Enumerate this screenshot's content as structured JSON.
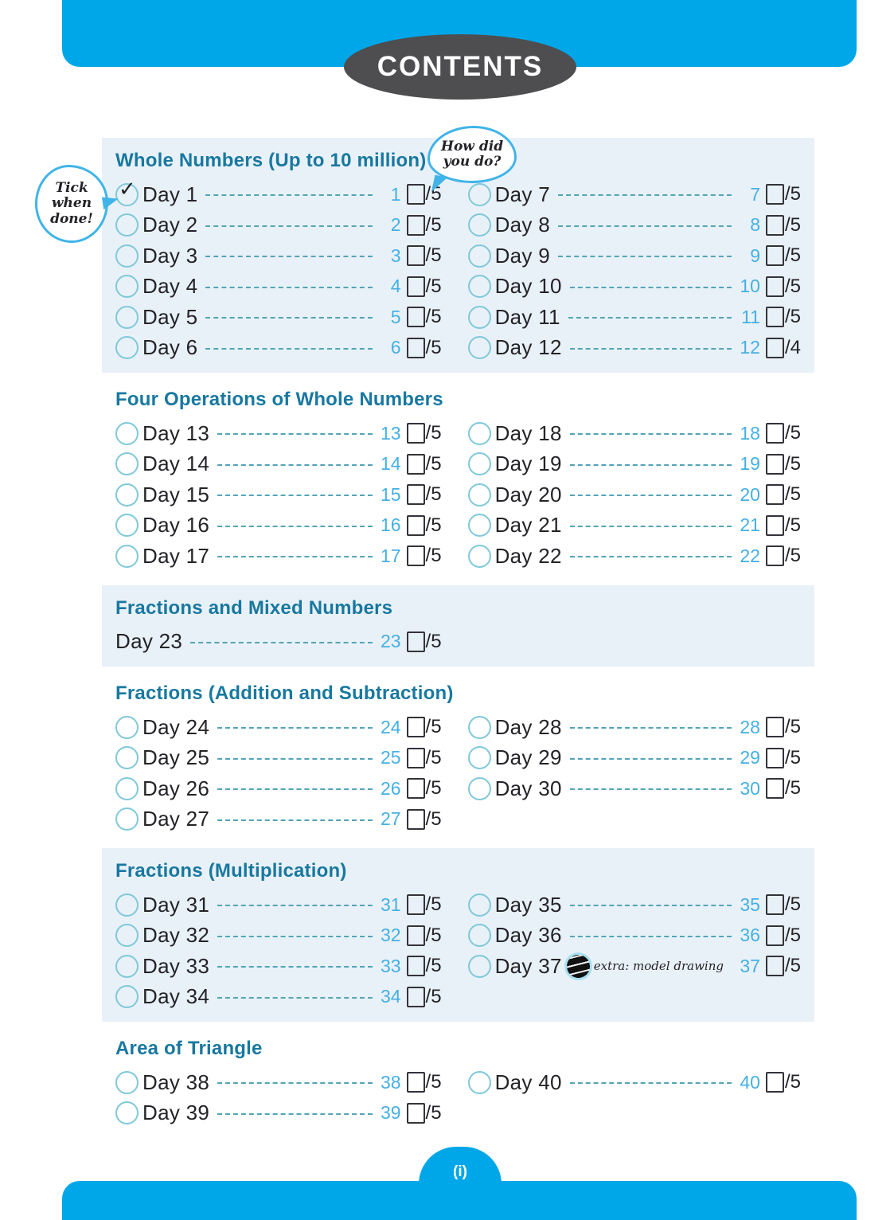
{
  "page": {
    "title": "CONTENTS",
    "footer_page_label": "(i)"
  },
  "icons": {
    "tick": "✓",
    "extra_badge": "extra-stamp-icon"
  },
  "colors": {
    "frame_blue": "#00a7e8",
    "oval_gray": "#4e4e50",
    "heading_teal": "#1878a0",
    "text_dark": "#232328",
    "page_number_blue": "#45b0e4",
    "dash_teal": "#53a4b8",
    "circle_outline": "#7fc9d9",
    "panel_background": "#e9f1f8",
    "bubble_blue": "#40b4e8"
  },
  "bubbles": {
    "tick_when_done": {
      "lines": [
        "Tick",
        "when",
        "done!"
      ]
    },
    "how_did_you_do": {
      "lines": [
        "How did",
        "you do?"
      ]
    }
  },
  "sections": [
    {
      "title": "Whole Numbers (Up to 10 million)",
      "panel": true,
      "columns": [
        [
          {
            "label": "Day 1",
            "page": "1",
            "score": "/5",
            "ticked": true
          },
          {
            "label": "Day 2",
            "page": "2",
            "score": "/5"
          },
          {
            "label": "Day 3",
            "page": "3",
            "score": "/5"
          },
          {
            "label": "Day 4",
            "page": "4",
            "score": "/5"
          },
          {
            "label": "Day 5",
            "page": "5",
            "score": "/5"
          },
          {
            "label": "Day 6",
            "page": "6",
            "score": "/5"
          }
        ],
        [
          {
            "label": "Day 7",
            "page": "7",
            "score": "/5"
          },
          {
            "label": "Day 8",
            "page": "8",
            "score": "/5"
          },
          {
            "label": "Day 9",
            "page": "9",
            "score": "/5"
          },
          {
            "label": "Day 10",
            "page": "10",
            "score": "/5"
          },
          {
            "label": "Day 11",
            "page": "11",
            "score": "/5"
          },
          {
            "label": "Day 12",
            "page": "12",
            "score": "/4"
          }
        ]
      ]
    },
    {
      "title": "Four Operations of Whole Numbers",
      "panel": false,
      "columns": [
        [
          {
            "label": "Day 13",
            "page": "13",
            "score": "/5"
          },
          {
            "label": "Day 14",
            "page": "14",
            "score": "/5"
          },
          {
            "label": "Day 15",
            "page": "15",
            "score": "/5"
          },
          {
            "label": "Day 16",
            "page": "16",
            "score": "/5"
          },
          {
            "label": "Day 17",
            "page": "17",
            "score": "/5"
          }
        ],
        [
          {
            "label": "Day 18",
            "page": "18",
            "score": "/5"
          },
          {
            "label": "Day 19",
            "page": "19",
            "score": "/5"
          },
          {
            "label": "Day 20",
            "page": "20",
            "score": "/5"
          },
          {
            "label": "Day 21",
            "page": "21",
            "score": "/5"
          },
          {
            "label": "Day 22",
            "page": "22",
            "score": "/5"
          }
        ]
      ]
    },
    {
      "title": "Fractions and Mixed Numbers",
      "panel": true,
      "columns": [
        [
          {
            "label": "Day 23",
            "page": "23",
            "score": "/5",
            "circle": false
          }
        ],
        []
      ]
    },
    {
      "title": "Fractions (Addition and Subtraction)",
      "panel": false,
      "columns": [
        [
          {
            "label": "Day 24",
            "page": "24",
            "score": "/5"
          },
          {
            "label": "Day 25",
            "page": "25",
            "score": "/5"
          },
          {
            "label": "Day 26",
            "page": "26",
            "score": "/5"
          },
          {
            "label": "Day 27",
            "page": "27",
            "score": "/5"
          }
        ],
        [
          {
            "label": "Day 28",
            "page": "28",
            "score": "/5"
          },
          {
            "label": "Day 29",
            "page": "29",
            "score": "/5"
          },
          {
            "label": "Day 30",
            "page": "30",
            "score": "/5"
          }
        ]
      ]
    },
    {
      "title": "Fractions (Multiplication)",
      "panel": true,
      "columns": [
        [
          {
            "label": "Day 31",
            "page": "31",
            "score": "/5"
          },
          {
            "label": "Day 32",
            "page": "32",
            "score": "/5"
          },
          {
            "label": "Day 33",
            "page": "33",
            "score": "/5"
          },
          {
            "label": "Day 34",
            "page": "34",
            "score": "/5"
          }
        ],
        [
          {
            "label": "Day 35",
            "page": "35",
            "score": "/5"
          },
          {
            "label": "Day 36",
            "page": "36",
            "score": "/5"
          },
          {
            "label": "Day 37",
            "page": "37",
            "score": "/5",
            "note": "extra: model drawing"
          }
        ]
      ]
    },
    {
      "title": "Area of Triangle",
      "panel": false,
      "columns": [
        [
          {
            "label": "Day 38",
            "page": "38",
            "score": "/5"
          },
          {
            "label": "Day 39",
            "page": "39",
            "score": "/5"
          }
        ],
        [
          {
            "label": "Day 40",
            "page": "40",
            "score": "/5"
          }
        ]
      ]
    }
  ]
}
